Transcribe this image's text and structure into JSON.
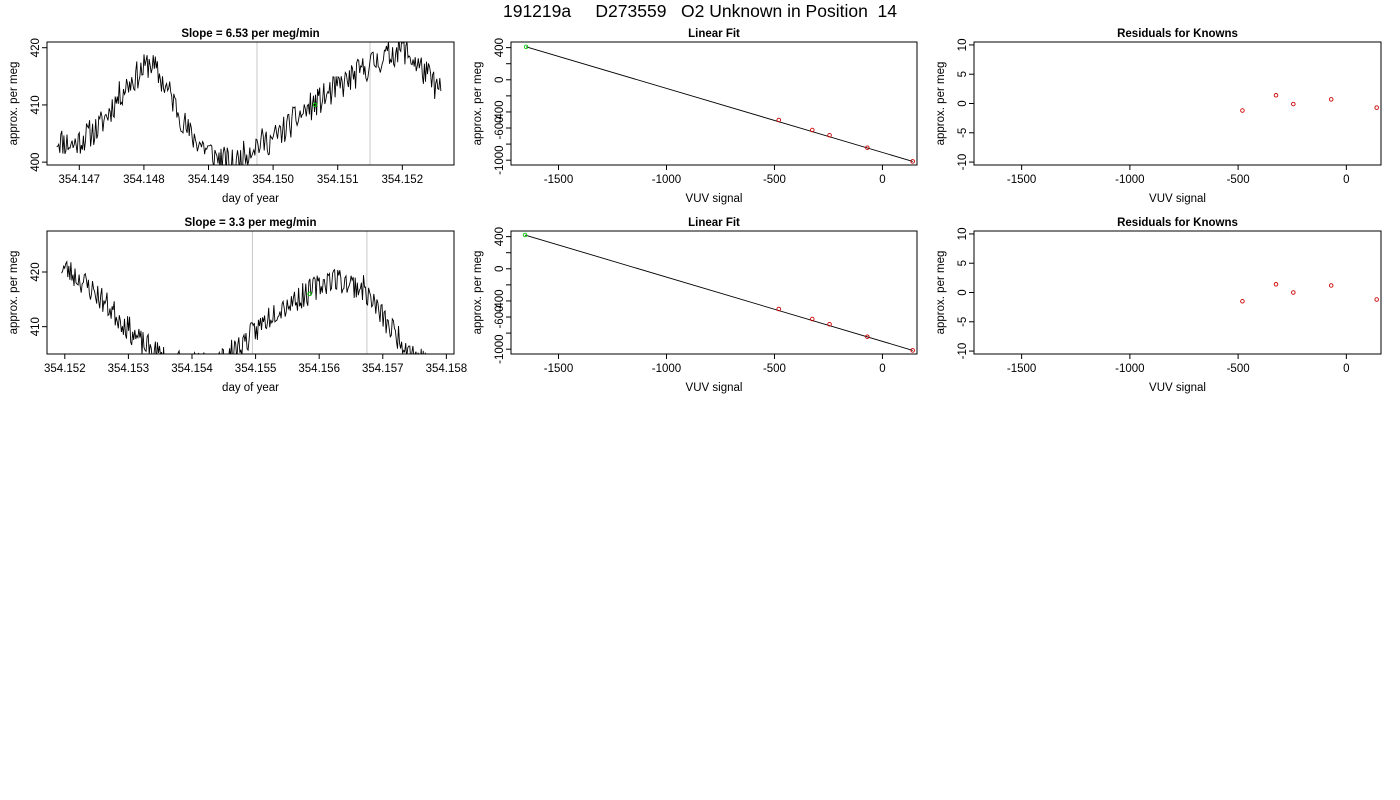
{
  "page": {
    "title": "191219a     D273559   O2 Unknown in Position  14"
  },
  "chart_data": [
    {
      "id": "ts1",
      "type": "line",
      "title": "Slope =  6.53  per meg/min",
      "xlabel": "day of year",
      "ylabel": "approx. per meg",
      "xlim": [
        354.1465,
        354.1528
      ],
      "ylim": [
        399.5,
        421
      ],
      "xticks": [
        354.147,
        354.148,
        354.149,
        354.15,
        354.151,
        354.152
      ],
      "xtick_labels": [
        "354.147",
        "354.148",
        "354.149",
        "354.150",
        "354.151",
        "354.152"
      ],
      "yticks": [
        400,
        410,
        420
      ],
      "ytick_labels": [
        "400",
        "410",
        "420"
      ],
      "vlines": [
        354.14975,
        354.1515
      ],
      "grid": false,
      "series": [
        {
          "color": "#000000",
          "x0": 354.14665,
          "dx": 1.59e-05,
          "noise": 1.6,
          "seed": 11,
          "trend_x": [
            354.14665,
            354.1469,
            354.1473,
            354.1477,
            354.1481,
            354.1484,
            354.1487,
            354.1491,
            354.1494,
            354.1497,
            354.15,
            354.1505,
            354.151,
            354.1515,
            354.152,
            354.1524,
            354.1526
          ],
          "trend_y": [
            404,
            403,
            406,
            413,
            417.5,
            412,
            405,
            401,
            399.5,
            403,
            404,
            409,
            413,
            417,
            420,
            415,
            412
          ]
        }
      ],
      "points": [
        {
          "x": 354.15065,
          "y": 410,
          "color": "#00cc00"
        }
      ]
    },
    {
      "id": "fit1",
      "type": "scatter",
      "title": "Linear Fit",
      "xlabel": "VUV signal",
      "ylabel": "approx. per meg",
      "xlim": [
        -1720,
        160
      ],
      "ylim": [
        -1060,
        470
      ],
      "xticks": [
        -1500,
        -1000,
        -500,
        0
      ],
      "xtick_labels": [
        "-1500",
        "-1000",
        "-500",
        "0"
      ],
      "yticks": [
        -1000,
        -800,
        -600,
        -400,
        -200,
        0,
        200,
        400
      ],
      "ytick_labels": [
        "-1000",
        "",
        "-600",
        "-400",
        "",
        "0",
        "",
        "400"
      ],
      "grid": false,
      "series": [
        {
          "color": "#cc0000",
          "x": [
            -480,
            -325,
            -245,
            -70,
            140
          ],
          "y": [
            -500,
            -625,
            -690,
            -845,
            -1015
          ]
        },
        {
          "color": "#00cc00",
          "x": [
            -1650
          ],
          "y": [
            410
          ]
        }
      ],
      "fit_line": {
        "x": [
          -1650,
          140
        ],
        "y": [
          410,
          -1015
        ],
        "color": "#000000"
      }
    },
    {
      "id": "res1",
      "type": "scatter",
      "title": "Residuals for Knowns",
      "xlabel": "VUV signal",
      "ylabel": "approx. per meg",
      "xlim": [
        -1720,
        160
      ],
      "ylim": [
        -10.5,
        10.5
      ],
      "xticks": [
        -1500,
        -1000,
        -500,
        0
      ],
      "xtick_labels": [
        "-1500",
        "-1000",
        "-500",
        "0"
      ],
      "yticks": [
        -10,
        -5,
        0,
        5,
        10
      ],
      "ytick_labels": [
        "-10",
        "-5",
        "0",
        "5",
        "10"
      ],
      "grid": false,
      "series": [
        {
          "color": "#cc0000",
          "x": [
            -480,
            -325,
            -245,
            -70,
            140
          ],
          "y": [
            -1.2,
            1.4,
            -0.1,
            0.7,
            -0.7
          ]
        }
      ]
    },
    {
      "id": "ts2",
      "type": "line",
      "title": "Slope =  3.3  per meg/min",
      "xlabel": "day of year",
      "ylabel": "approx. per meg",
      "xlim": [
        354.15172,
        354.15812
      ],
      "ylim": [
        405,
        427.5
      ],
      "xticks": [
        354.152,
        354.153,
        354.154,
        354.155,
        354.156,
        354.157,
        354.158
      ],
      "xtick_labels": [
        "354.152",
        "354.153",
        "354.154",
        "354.155",
        "354.156",
        "354.157",
        "354.158"
      ],
      "yticks": [
        410,
        420
      ],
      "ytick_labels": [
        "410",
        "420"
      ],
      "vlines": [
        354.15495,
        354.15675
      ],
      "grid": false,
      "series": [
        {
          "color": "#000000",
          "x0": 354.15195,
          "dx": 1.62e-05,
          "noise": 1.5,
          "seed": 23,
          "trend_x": [
            354.15195,
            354.1522,
            354.1525,
            354.1529,
            354.1532,
            354.1536,
            354.154,
            354.1545,
            354.1549,
            354.1553,
            354.1558,
            354.1562,
            354.1567,
            354.1571,
            354.1575,
            354.15775
          ],
          "trend_y": [
            421,
            419,
            416,
            411,
            407,
            404,
            403,
            404,
            408,
            413,
            416,
            419,
            417,
            410,
            405,
            403
          ]
        }
      ],
      "points": [
        {
          "x": 354.15585,
          "y": 416,
          "color": "#00cc00"
        }
      ]
    },
    {
      "id": "fit2",
      "type": "scatter",
      "title": "Linear Fit",
      "xlabel": "VUV signal",
      "ylabel": "approx. per meg",
      "xlim": [
        -1720,
        160
      ],
      "ylim": [
        -1060,
        470
      ],
      "xticks": [
        -1500,
        -1000,
        -500,
        0
      ],
      "xtick_labels": [
        "-1500",
        "-1000",
        "-500",
        "0"
      ],
      "yticks": [
        -1000,
        -800,
        -600,
        -400,
        -200,
        0,
        200,
        400
      ],
      "ytick_labels": [
        "-1000",
        "",
        "-600",
        "-400",
        "",
        "0",
        "",
        "400"
      ],
      "grid": false,
      "series": [
        {
          "color": "#cc0000",
          "x": [
            -480,
            -325,
            -245,
            -70,
            140
          ],
          "y": [
            -500,
            -625,
            -690,
            -845,
            -1015
          ]
        },
        {
          "color": "#00cc00",
          "x": [
            -1655
          ],
          "y": [
            420
          ]
        }
      ],
      "fit_line": {
        "x": [
          -1655,
          140
        ],
        "y": [
          420,
          -1015
        ],
        "color": "#000000"
      }
    },
    {
      "id": "res2",
      "type": "scatter",
      "title": "Residuals for Knowns",
      "xlabel": "VUV signal",
      "ylabel": "approx. per meg",
      "xlim": [
        -1720,
        160
      ],
      "ylim": [
        -10.5,
        10.5
      ],
      "xticks": [
        -1500,
        -1000,
        -500,
        0
      ],
      "xtick_labels": [
        "-1500",
        "-1000",
        "-500",
        "0"
      ],
      "yticks": [
        -10,
        -5,
        0,
        5,
        10
      ],
      "ytick_labels": [
        "-10",
        "-5",
        "0",
        "5",
        "10"
      ],
      "grid": false,
      "series": [
        {
          "color": "#cc0000",
          "x": [
            -480,
            -325,
            -245,
            -70,
            140
          ],
          "y": [
            -1.5,
            1.4,
            0.0,
            1.2,
            -1.2
          ]
        }
      ]
    }
  ]
}
